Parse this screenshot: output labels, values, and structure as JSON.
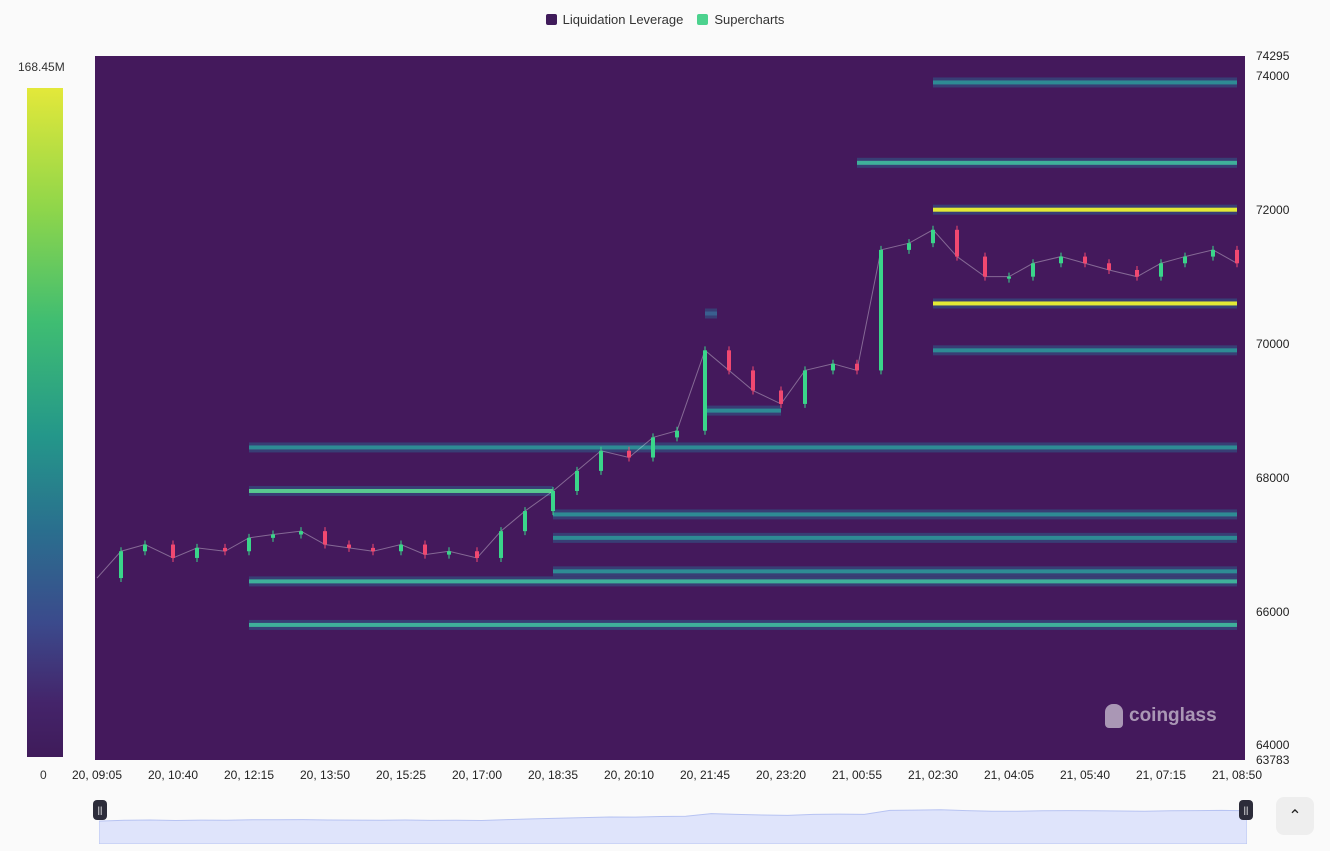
{
  "legend": [
    {
      "label": "Liquidation Leverage",
      "color": "#3f1b5a"
    },
    {
      "label": "Supercharts",
      "color": "#4cd28e"
    }
  ],
  "colorbar": {
    "max_label": "168.45M",
    "min_label": "0"
  },
  "watermark": "coinglass",
  "chart_data": {
    "type": "heatmap",
    "title": "",
    "xlabel": "",
    "ylabel": "",
    "x_ticks": [
      "20, 09:05",
      "20, 10:40",
      "20, 12:15",
      "20, 13:50",
      "20, 15:25",
      "20, 17:00",
      "20, 18:35",
      "20, 20:10",
      "20, 21:45",
      "20, 23:20",
      "21, 00:55",
      "21, 02:30",
      "21, 04:05",
      "21, 05:40",
      "21, 07:15",
      "21, 08:50"
    ],
    "y_ticks": [
      "74295",
      "74000",
      "72000",
      "70000",
      "68000",
      "66000",
      "64000",
      "63783"
    ],
    "ylim": [
      63783,
      74295
    ],
    "value_range": [
      0,
      168450000
    ],
    "background_color": "#44195c",
    "liquidation_bands": [
      {
        "price": 73900,
        "from": "21, 02:30",
        "to": "21, 08:50",
        "intensity": 0.5
      },
      {
        "price": 72700,
        "from": "21, 00:55",
        "to": "21, 08:50",
        "intensity": 0.55
      },
      {
        "price": 72000,
        "from": "21, 02:30",
        "to": "21, 08:50",
        "intensity": 0.95
      },
      {
        "price": 70600,
        "from": "21, 02:30",
        "to": "21, 08:50",
        "intensity": 0.98
      },
      {
        "price": 69900,
        "from": "21, 02:30",
        "to": "21, 08:50",
        "intensity": 0.5
      },
      {
        "price": 68450,
        "from": "20, 12:15",
        "to": "21, 08:50",
        "intensity": 0.45
      },
      {
        "price": 67800,
        "from": "20, 12:15",
        "to": "20, 18:35",
        "intensity": 0.65
      },
      {
        "price": 67450,
        "from": "20, 18:35",
        "to": "21, 08:50",
        "intensity": 0.5
      },
      {
        "price": 67100,
        "from": "20, 18:35",
        "to": "21, 08:50",
        "intensity": 0.5
      },
      {
        "price": 66600,
        "from": "20, 18:35",
        "to": "21, 08:50",
        "intensity": 0.5
      },
      {
        "price": 66450,
        "from": "20, 12:15",
        "to": "21, 08:50",
        "intensity": 0.6
      },
      {
        "price": 65800,
        "from": "20, 12:15",
        "to": "21, 08:50",
        "intensity": 0.55
      },
      {
        "price": 69000,
        "from": "20, 21:45",
        "to": "20, 23:20",
        "intensity": 0.45
      },
      {
        "price": 70450,
        "from": "20, 21:45",
        "to": "20, 21:45",
        "intensity": 0.35
      }
    ],
    "price_series": [
      {
        "time": "20, 09:05",
        "price": 66500
      },
      {
        "time": "20, 09:35",
        "price": 66900
      },
      {
        "time": "20, 10:05",
        "price": 67000
      },
      {
        "time": "20, 10:40",
        "price": 66800
      },
      {
        "time": "20, 11:10",
        "price": 66950
      },
      {
        "time": "20, 11:45",
        "price": 66900
      },
      {
        "time": "20, 12:15",
        "price": 67100
      },
      {
        "time": "20, 12:45",
        "price": 67150
      },
      {
        "time": "20, 13:20",
        "price": 67200
      },
      {
        "time": "20, 13:50",
        "price": 67000
      },
      {
        "time": "20, 14:20",
        "price": 66950
      },
      {
        "time": "20, 14:50",
        "price": 66900
      },
      {
        "time": "20, 15:25",
        "price": 67000
      },
      {
        "time": "20, 15:55",
        "price": 66850
      },
      {
        "time": "20, 16:25",
        "price": 66900
      },
      {
        "time": "20, 17:00",
        "price": 66800
      },
      {
        "time": "20, 17:30",
        "price": 67200
      },
      {
        "time": "20, 18:00",
        "price": 67500
      },
      {
        "time": "20, 18:35",
        "price": 67800
      },
      {
        "time": "20, 19:05",
        "price": 68100
      },
      {
        "time": "20, 19:35",
        "price": 68400
      },
      {
        "time": "20, 20:10",
        "price": 68300
      },
      {
        "time": "20, 20:40",
        "price": 68600
      },
      {
        "time": "20, 21:10",
        "price": 68700
      },
      {
        "time": "20, 21:45",
        "price": 69900
      },
      {
        "time": "20, 22:15",
        "price": 69600
      },
      {
        "time": "20, 22:45",
        "price": 69300
      },
      {
        "time": "20, 23:20",
        "price": 69100
      },
      {
        "time": "20, 23:50",
        "price": 69600
      },
      {
        "time": "21, 00:25",
        "price": 69700
      },
      {
        "time": "21, 00:55",
        "price": 69600
      },
      {
        "time": "21, 01:25",
        "price": 71400
      },
      {
        "time": "21, 02:00",
        "price": 71500
      },
      {
        "time": "21, 02:30",
        "price": 71700
      },
      {
        "time": "21, 03:00",
        "price": 71300
      },
      {
        "time": "21, 03:35",
        "price": 71000
      },
      {
        "time": "21, 04:05",
        "price": 71000
      },
      {
        "time": "21, 04:35",
        "price": 71200
      },
      {
        "time": "21, 05:10",
        "price": 71300
      },
      {
        "time": "21, 05:40",
        "price": 71200
      },
      {
        "time": "21, 06:10",
        "price": 71100
      },
      {
        "time": "21, 06:45",
        "price": 71000
      },
      {
        "time": "21, 07:15",
        "price": 71200
      },
      {
        "time": "21, 07:45",
        "price": 71300
      },
      {
        "time": "21, 08:20",
        "price": 71400
      },
      {
        "time": "21, 08:50",
        "price": 71200
      }
    ]
  }
}
